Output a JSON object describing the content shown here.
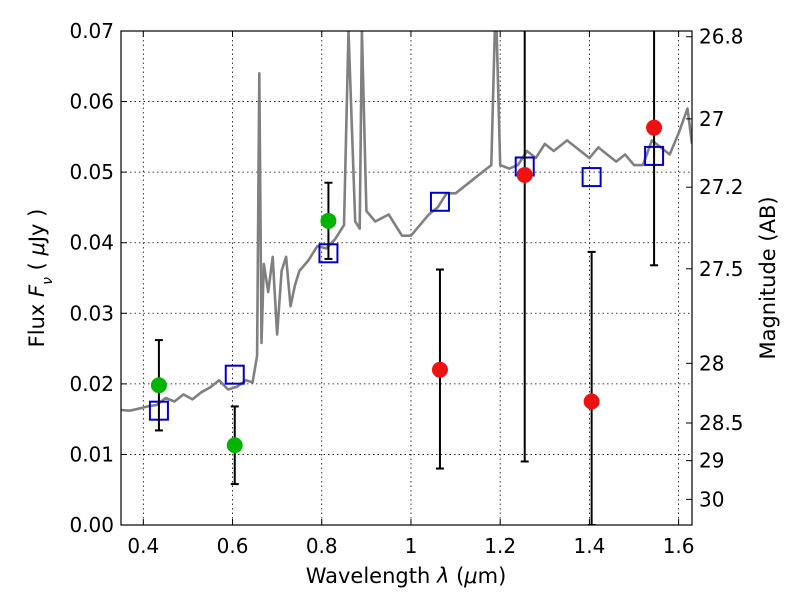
{
  "chart_data": {
    "type": "scatter",
    "xlabel": "Wavelength  λ (μm)",
    "ylabel": "Flux  F_ν  ( μJy )",
    "y2label": "Magnitude (AB)",
    "xlim": [
      0.35,
      1.63
    ],
    "ylim": [
      0.0,
      0.07
    ],
    "grid": true,
    "x_ticks": [
      0.4,
      0.6,
      0.8,
      1.0,
      1.2,
      1.4,
      1.6
    ],
    "x_tick_labels": [
      "0.4",
      "0.6",
      "0.8",
      "1",
      "1.2",
      "1.4",
      "1.6"
    ],
    "y_ticks": [
      0.0,
      0.01,
      0.02,
      0.03,
      0.04,
      0.05,
      0.06,
      0.07
    ],
    "y_tick_labels": [
      "0.00",
      "0.01",
      "0.02",
      "0.03",
      "0.04",
      "0.05",
      "0.06",
      "0.07"
    ],
    "y2_ticks": [
      {
        "mag": 26.8,
        "label": "26.8"
      },
      {
        "mag": 27.0,
        "label": "27"
      },
      {
        "mag": 27.2,
        "label": "27.2"
      },
      {
        "mag": 27.5,
        "label": "27.5"
      },
      {
        "mag": 28.0,
        "label": "28"
      },
      {
        "mag": 28.5,
        "label": "28.5"
      },
      {
        "mag": 29.0,
        "label": "29"
      },
      {
        "mag": 30.0,
        "label": "30"
      }
    ],
    "series": [
      {
        "kind": "model-spectrum",
        "color": "#808080",
        "x": [
          0.35,
          0.37,
          0.39,
          0.41,
          0.43,
          0.45,
          0.47,
          0.49,
          0.51,
          0.53,
          0.55,
          0.57,
          0.59,
          0.61,
          0.63,
          0.645,
          0.655,
          0.66,
          0.665,
          0.67,
          0.68,
          0.69,
          0.7,
          0.71,
          0.72,
          0.73,
          0.74,
          0.75,
          0.77,
          0.79,
          0.81,
          0.83,
          0.85,
          0.86,
          0.875,
          0.885,
          0.89,
          0.9,
          0.92,
          0.95,
          0.98,
          1.0,
          1.02,
          1.04,
          1.06,
          1.08,
          1.1,
          1.12,
          1.14,
          1.16,
          1.18,
          1.19,
          1.2,
          1.22,
          1.24,
          1.26,
          1.28,
          1.3,
          1.32,
          1.35,
          1.38,
          1.4,
          1.42,
          1.44,
          1.46,
          1.48,
          1.5,
          1.52,
          1.54,
          1.56,
          1.58,
          1.6,
          1.62,
          1.63
        ],
        "y": [
          0.0163,
          0.0162,
          0.0165,
          0.0168,
          0.017,
          0.018,
          0.0175,
          0.0185,
          0.0178,
          0.0188,
          0.0195,
          0.0205,
          0.0192,
          0.0196,
          0.0205,
          0.0202,
          0.024,
          0.064,
          0.0258,
          0.037,
          0.033,
          0.038,
          0.027,
          0.036,
          0.038,
          0.031,
          0.034,
          0.036,
          0.0375,
          0.0395,
          0.0392,
          0.0405,
          0.0425,
          0.07,
          0.043,
          0.042,
          0.07,
          0.0445,
          0.043,
          0.044,
          0.041,
          0.041,
          0.0425,
          0.044,
          0.045,
          0.047,
          0.047,
          0.048,
          0.049,
          0.05,
          0.051,
          0.075,
          0.051,
          0.0505,
          0.051,
          0.053,
          0.052,
          0.054,
          0.053,
          0.0545,
          0.053,
          0.052,
          0.0535,
          0.0525,
          0.0515,
          0.0525,
          0.051,
          0.051,
          0.0545,
          0.0535,
          0.0525,
          0.0555,
          0.059,
          0.054
        ]
      },
      {
        "kind": "model-photometry",
        "color": "#0000cc",
        "marker": "open-square",
        "x": [
          0.435,
          0.605,
          0.815,
          1.065,
          1.255,
          1.405,
          1.545
        ],
        "y": [
          0.0162,
          0.0213,
          0.0385,
          0.0458,
          0.0508,
          0.0493,
          0.0523
        ]
      },
      {
        "kind": "detections",
        "color": "#00b400",
        "marker": "filled-circle",
        "x": [
          0.435,
          0.605,
          0.815
        ],
        "y": [
          0.0198,
          0.0113,
          0.0431
        ],
        "yerr_low": [
          0.0134,
          0.0058,
          0.0377
        ],
        "yerr_high": [
          0.0262,
          0.0168,
          0.0485
        ]
      },
      {
        "kind": "non-detections",
        "color": "#ee1111",
        "marker": "filled-circle",
        "x": [
          1.065,
          1.255,
          1.405,
          1.545
        ],
        "y": [
          0.022,
          0.0496,
          0.0175,
          0.0563
        ],
        "yerr_low": [
          0.008,
          0.009,
          0.0,
          0.0368
        ],
        "yerr_high": [
          0.0362,
          0.075,
          0.0387,
          0.075
        ]
      }
    ]
  }
}
